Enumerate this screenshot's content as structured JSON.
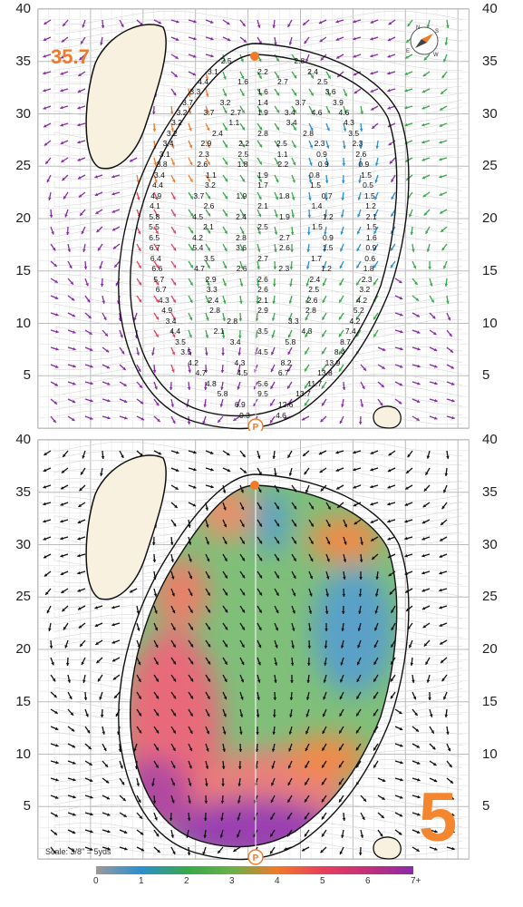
{
  "hole_distance": "35.7",
  "hole_number": "5",
  "scale_note": "Scale: 3/8\" = 5yds",
  "y_ticks": [
    "40",
    "35",
    "30",
    "25",
    "20",
    "15",
    "10",
    "5"
  ],
  "legend": {
    "labels": [
      "0",
      "1",
      "2",
      "3",
      "4",
      "5",
      "6",
      "7+"
    ],
    "colors": [
      "#9a9a9a",
      "#2a8fd0",
      "#3aa84a",
      "#6ab04a",
      "#f07a2a",
      "#e8405a",
      "#c0307a",
      "#8a2aa8"
    ]
  },
  "compass": {
    "letters": [
      "N",
      "E",
      "S",
      "W"
    ]
  },
  "pin_icon": "p-marker-icon",
  "slope_values": [
    {
      "v": "2.5",
      "c": 0
    },
    {
      "v": "2.8",
      "c": 0
    },
    {
      "v": "3.1",
      "c": 0
    },
    {
      "v": "2.2",
      "c": 0
    },
    {
      "v": "2.4",
      "c": 0
    },
    {
      "v": "4.4",
      "c": 0
    },
    {
      "v": "1.6",
      "c": 0
    },
    {
      "v": "2.7",
      "c": 0
    },
    {
      "v": "2.5",
      "c": 0
    },
    {
      "v": "3.3",
      "c": 0
    },
    {
      "v": "1.6",
      "c": 0
    },
    {
      "v": "3.6",
      "c": 0
    },
    {
      "v": "3.7",
      "c": 0
    },
    {
      "v": "3.2",
      "c": 0
    },
    {
      "v": "1.4",
      "c": 0
    },
    {
      "v": "3.7",
      "c": 0
    },
    {
      "v": "3.9",
      "c": 0
    },
    {
      "v": "3.2",
      "c": 0
    },
    {
      "v": "3.7",
      "c": 0
    },
    {
      "v": "2.7",
      "c": 0
    },
    {
      "v": "1.9",
      "c": 0
    },
    {
      "v": "3.4",
      "c": 0
    },
    {
      "v": "4.6",
      "c": 0
    },
    {
      "v": "4.6",
      "c": 0
    },
    {
      "v": "3.2",
      "c": 0
    },
    {
      "v": "1.1",
      "c": 0
    },
    {
      "v": "3.4",
      "c": 0
    },
    {
      "v": "4.3",
      "c": 0
    },
    {
      "v": "3.2",
      "c": 0
    },
    {
      "v": "2.4",
      "c": 0
    },
    {
      "v": "2.8",
      "c": 0
    },
    {
      "v": "2.8",
      "c": 0
    },
    {
      "v": "3.5",
      "c": 0
    },
    {
      "v": "3.4",
      "c": 0
    },
    {
      "v": "2.9",
      "c": 0
    },
    {
      "v": "2.2",
      "c": 0
    },
    {
      "v": "2.5",
      "c": 0
    },
    {
      "v": "2.3",
      "c": 0
    },
    {
      "v": "2.3",
      "c": 0
    },
    {
      "v": "3.1",
      "c": 0
    },
    {
      "v": "2.3",
      "c": 0
    },
    {
      "v": "2.5",
      "c": 0
    },
    {
      "v": "1.1",
      "c": 0
    },
    {
      "v": "0.9",
      "c": 0
    },
    {
      "v": "2.6",
      "c": 0
    },
    {
      "v": "3.8",
      "c": 0
    },
    {
      "v": "2.6",
      "c": 0
    },
    {
      "v": "1.8",
      "c": 0
    },
    {
      "v": "2.2",
      "c": 0
    },
    {
      "v": "0.9",
      "c": 0
    },
    {
      "v": "0.9",
      "c": 0
    },
    {
      "v": "3.4",
      "c": 0
    },
    {
      "v": "1.1",
      "c": 0
    },
    {
      "v": "1.9",
      "c": 0
    },
    {
      "v": "0.8",
      "c": 0
    },
    {
      "v": "1.5",
      "c": 0
    },
    {
      "v": "4.4",
      "c": 0
    },
    {
      "v": "3.2",
      "c": 0
    },
    {
      "v": "1.7",
      "c": 0
    },
    {
      "v": "1.5",
      "c": 0
    },
    {
      "v": "0.5",
      "c": 0
    },
    {
      "v": "4.9",
      "c": 0
    },
    {
      "v": "3.7",
      "c": 0
    },
    {
      "v": "1.9",
      "c": 0
    },
    {
      "v": "1.8",
      "c": 0
    },
    {
      "v": "0.7",
      "c": 0
    },
    {
      "v": "1.5",
      "c": 0
    },
    {
      "v": "4.1",
      "c": 0
    },
    {
      "v": "2.6",
      "c": 0
    },
    {
      "v": "2.1",
      "c": 0
    },
    {
      "v": "1.4",
      "c": 0
    },
    {
      "v": "1.2",
      "c": 0
    },
    {
      "v": "5.8",
      "c": 0
    },
    {
      "v": "4.5",
      "c": 0
    },
    {
      "v": "2.4",
      "c": 0
    },
    {
      "v": "1.9",
      "c": 0
    },
    {
      "v": "1.2",
      "c": 0
    },
    {
      "v": "2.1",
      "c": 0
    },
    {
      "v": "5.5",
      "c": 0
    },
    {
      "v": "2.1",
      "c": 0
    },
    {
      "v": "2.5",
      "c": 0
    },
    {
      "v": "1.5",
      "c": 0
    },
    {
      "v": "1.5",
      "c": 0
    },
    {
      "v": "6.5",
      "c": 0
    },
    {
      "v": "4.2",
      "c": 0
    },
    {
      "v": "2.8",
      "c": 0
    },
    {
      "v": "2.7",
      "c": 0
    },
    {
      "v": "0.9",
      "c": 0
    },
    {
      "v": "1.6",
      "c": 0
    },
    {
      "v": "6.7",
      "c": 0
    },
    {
      "v": "5.4",
      "c": 0
    },
    {
      "v": "3.6",
      "c": 0
    },
    {
      "v": "2.6",
      "c": 0
    },
    {
      "v": "1.5",
      "c": 0
    },
    {
      "v": "0.9",
      "c": 0
    },
    {
      "v": "6.4",
      "c": 0
    },
    {
      "v": "3.5",
      "c": 0
    },
    {
      "v": "2.7",
      "c": 0
    },
    {
      "v": "1.7",
      "c": 0
    },
    {
      "v": "0.6",
      "c": 0
    },
    {
      "v": "6.6",
      "c": 0
    },
    {
      "v": "4.7",
      "c": 0
    },
    {
      "v": "2.6",
      "c": 0
    },
    {
      "v": "2.3",
      "c": 0
    },
    {
      "v": "1.2",
      "c": 0
    },
    {
      "v": "1.8",
      "c": 0
    },
    {
      "v": "5.7",
      "c": 0
    },
    {
      "v": "2.9",
      "c": 0
    },
    {
      "v": "2.6",
      "c": 0
    },
    {
      "v": "2.4",
      "c": 0
    },
    {
      "v": "2.3",
      "c": 0
    },
    {
      "v": "6.7",
      "c": 0
    },
    {
      "v": "3.3",
      "c": 0
    },
    {
      "v": "2.6",
      "c": 0
    },
    {
      "v": "2.5",
      "c": 0
    },
    {
      "v": "3.2",
      "c": 0
    },
    {
      "v": "4.3",
      "c": 0
    },
    {
      "v": "2.4",
      "c": 0
    },
    {
      "v": "2.1",
      "c": 0
    },
    {
      "v": "2.6",
      "c": 0
    },
    {
      "v": "4.2",
      "c": 0
    },
    {
      "v": "4.9",
      "c": 0
    },
    {
      "v": "2.8",
      "c": 0
    },
    {
      "v": "2.9",
      "c": 0
    },
    {
      "v": "2.8",
      "c": 0
    },
    {
      "v": "5.2",
      "c": 0
    },
    {
      "v": "3.4",
      "c": 0
    },
    {
      "v": "2.8",
      "c": 0
    },
    {
      "v": "3.3",
      "c": 0
    },
    {
      "v": "4.2",
      "c": 0
    },
    {
      "v": "4.4",
      "c": 0
    },
    {
      "v": "2.1",
      "c": 0
    },
    {
      "v": "3.5",
      "c": 0
    },
    {
      "v": "4.3",
      "c": 0
    },
    {
      "v": "7.4",
      "c": 0
    },
    {
      "v": "3.5",
      "c": 0
    },
    {
      "v": "3.4",
      "c": 0
    },
    {
      "v": "5.8",
      "c": 0
    },
    {
      "v": "8.7",
      "c": 0
    },
    {
      "v": "3.5",
      "c": 0
    },
    {
      "v": "4.5",
      "c": 0
    },
    {
      "v": "8.4",
      "c": 0
    },
    {
      "v": "4.2",
      "c": 0
    },
    {
      "v": "4.3",
      "c": 0
    },
    {
      "v": "8.2",
      "c": 0
    },
    {
      "v": "13.9",
      "c": 0
    },
    {
      "v": "4.7",
      "c": 0
    },
    {
      "v": "4.5",
      "c": 0
    },
    {
      "v": "6.7",
      "c": 0
    },
    {
      "v": "13.8",
      "c": 0
    },
    {
      "v": "4.8",
      "c": 0
    },
    {
      "v": "5.6",
      "c": 0
    },
    {
      "v": "11.7",
      "c": 0
    },
    {
      "v": "5.8",
      "c": 0
    },
    {
      "v": "9.5",
      "c": 0
    },
    {
      "v": "13.7",
      "c": 0
    },
    {
      "v": "6.9",
      "c": 0
    },
    {
      "v": "12.6",
      "c": 0
    },
    {
      "v": "4.6",
      "c": 0
    },
    {
      "v": "9.3",
      "c": 0
    }
  ]
}
